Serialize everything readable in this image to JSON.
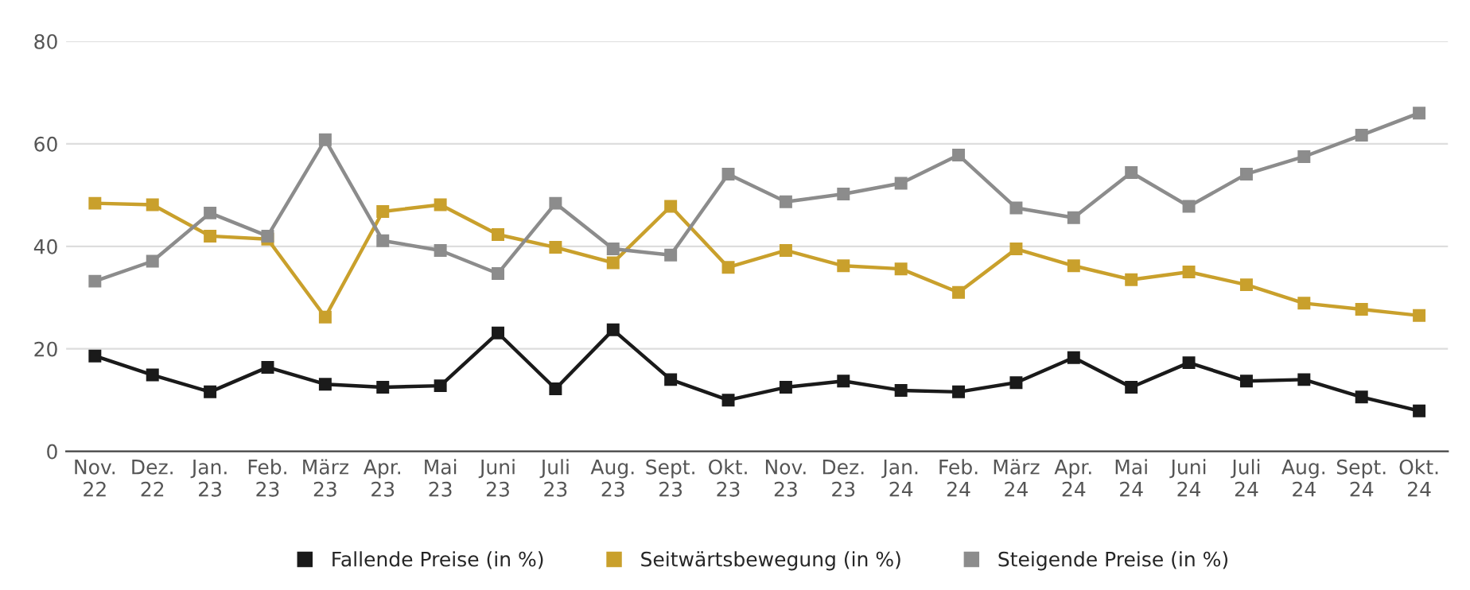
{
  "chart_data": {
    "type": "line",
    "categories": [
      "Nov.\n22",
      "Dez.\n22",
      "Jan.\n23",
      "Feb.\n23",
      "März\n23",
      "Apr.\n23",
      "Mai\n23",
      "Juni\n23",
      "Juli\n23",
      "Aug.\n23",
      "Sept.\n23",
      "Okt.\n23",
      "Nov.\n23",
      "Dez.\n23",
      "Jan.\n24",
      "Feb.\n24",
      "März\n24",
      "Apr.\n24",
      "Mai\n24",
      "Juni\n24",
      "Juli\n24",
      "Aug.\n24",
      "Sept.\n24",
      "Okt.\n24"
    ],
    "series": [
      {
        "name": "Fallende Preise (in %)",
        "color": "#1a1a1a",
        "values": [
          18.6,
          14.9,
          11.6,
          16.4,
          13.1,
          12.5,
          12.8,
          23.1,
          12.2,
          23.7,
          14.0,
          10.0,
          12.5,
          13.7,
          11.9,
          11.6,
          13.4,
          18.3,
          12.5,
          17.3,
          13.7,
          14.0,
          10.6,
          7.9
        ]
      },
      {
        "name": "Seitwärtsbewegung (in %)",
        "color": "#c9a02c",
        "values": [
          48.4,
          48.1,
          42.0,
          41.4,
          26.2,
          46.8,
          48.1,
          42.3,
          39.8,
          36.8,
          47.8,
          35.9,
          39.2,
          36.2,
          35.6,
          31.0,
          39.5,
          36.2,
          33.5,
          35.0,
          32.5,
          28.9,
          27.7,
          26.5
        ]
      },
      {
        "name": "Steigende Preise (in %)",
        "color": "#8c8c8c",
        "values": [
          33.2,
          37.1,
          46.5,
          42.0,
          60.8,
          41.1,
          39.2,
          34.7,
          48.4,
          39.5,
          38.3,
          54.1,
          48.7,
          50.2,
          52.3,
          57.8,
          47.5,
          45.6,
          54.4,
          47.8,
          54.1,
          57.5,
          61.7,
          66.0
        ]
      }
    ],
    "ylim": [
      0,
      80
    ],
    "yticks": [
      0,
      20,
      40,
      60,
      80
    ],
    "grid": "y",
    "legend": "bottom",
    "marker": "square",
    "line_style": "solid"
  }
}
